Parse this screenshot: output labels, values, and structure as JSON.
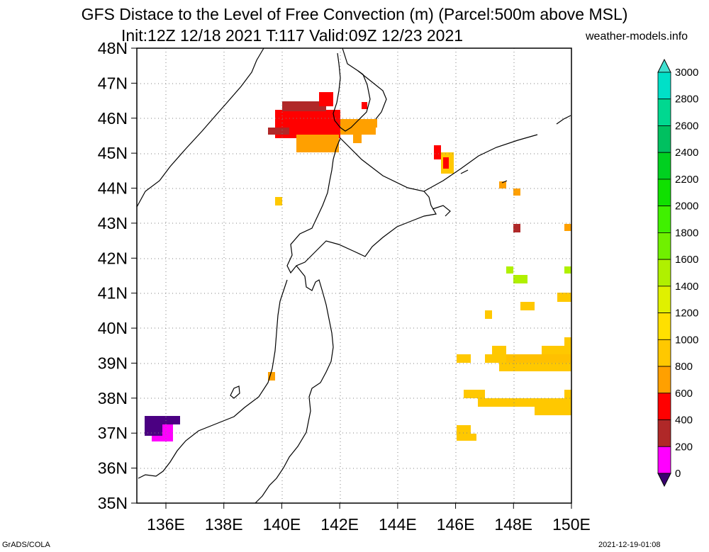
{
  "title": {
    "line1": "GFS Distace to the Level of Free Convection (m) (Parcel:500m above MSL)",
    "line2": "Init:12Z 12/18 2021 T:117 Valid:09Z 12/23 2021"
  },
  "site": "weather-models.info",
  "footer": {
    "left": "GrADS/COLA",
    "right": "2021-12-19-01:08"
  },
  "lat_labels": [
    "48N",
    "47N",
    "46N",
    "45N",
    "44N",
    "43N",
    "42N",
    "41N",
    "40N",
    "39N",
    "38N",
    "37N",
    "36N",
    "35N"
  ],
  "lon_labels": [
    "136E",
    "138E",
    "140E",
    "142E",
    "144E",
    "146E",
    "148E",
    "150E"
  ],
  "colorbar": {
    "labels": [
      "3000",
      "2800",
      "2600",
      "2400",
      "2200",
      "2000",
      "1800",
      "1600",
      "1400",
      "1200",
      "1000",
      "800",
      "600",
      "400",
      "200",
      "0"
    ],
    "colors": [
      "#00e0c8",
      "#00d890",
      "#00c060",
      "#00d020",
      "#10e000",
      "#40f000",
      "#70f000",
      "#b0f000",
      "#e0f000",
      "#ffe000",
      "#ffc800",
      "#ffa000",
      "#ff0000",
      "#b02828",
      "#ff00ff",
      "#4b0082"
    ],
    "top_arrow_color": "#40e0d0",
    "bottom_arrow_color": "#3a0070"
  },
  "colors": {
    "coast": "#000000",
    "grid": "#808080",
    "frame": "#000000"
  }
}
